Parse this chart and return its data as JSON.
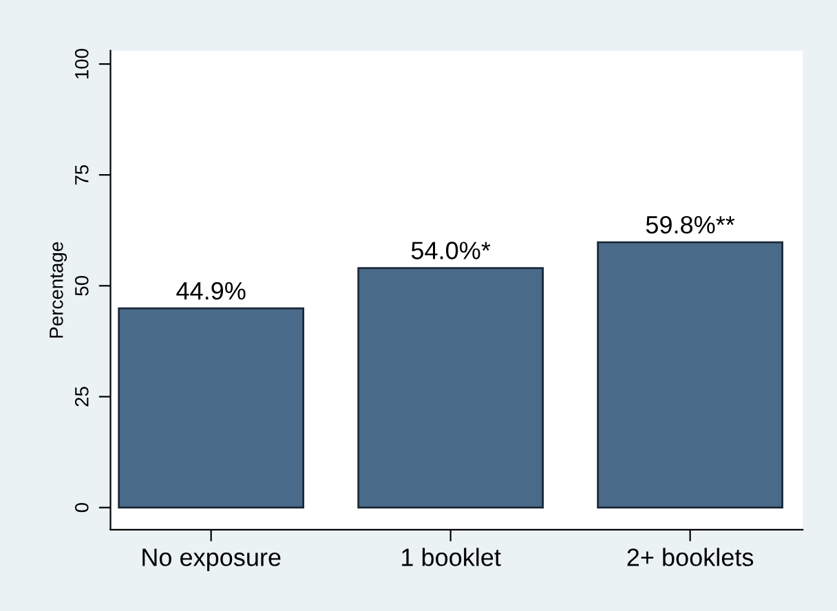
{
  "chart_data": {
    "type": "bar",
    "ylabel": "Percentage",
    "categories": [
      "No exposure",
      "1 booklet",
      "2+ booklets"
    ],
    "values": [
      44.9,
      54.0,
      59.8
    ],
    "value_labels": [
      "44.9%",
      "54.0%*",
      "59.8%**"
    ],
    "color": "#4a6a8a",
    "ylim": [
      -5,
      103
    ],
    "yticks": [
      0,
      25,
      50,
      75,
      100
    ],
    "grid": false
  }
}
